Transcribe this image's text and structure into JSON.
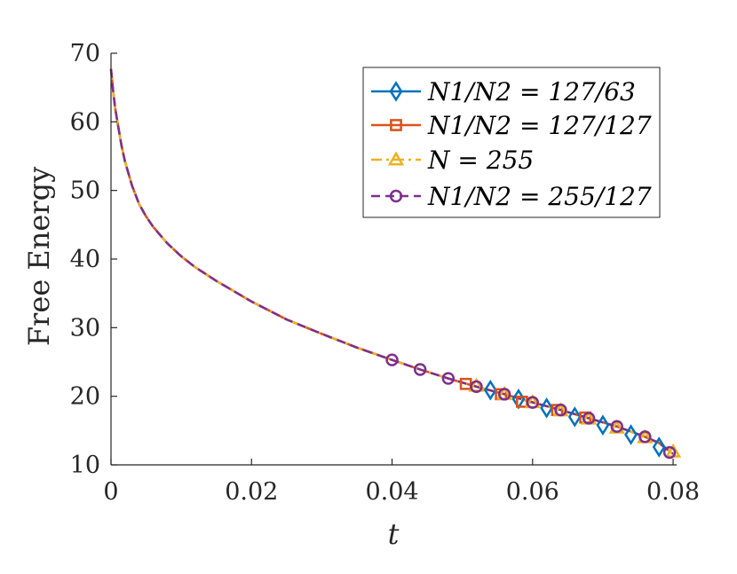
{
  "chart_data": {
    "type": "line",
    "title": "",
    "xlabel": "t",
    "ylabel": "Free Energy",
    "xlim": [
      0,
      0.0805
    ],
    "ylim": [
      10,
      70
    ],
    "xticks": [
      0,
      0.02,
      0.04,
      0.06,
      0.08
    ],
    "xtick_labels": [
      "0",
      "0.02",
      "0.04",
      "0.06",
      "0.08"
    ],
    "yticks": [
      10,
      20,
      30,
      40,
      50,
      60,
      70
    ],
    "ytick_labels": [
      "10",
      "20",
      "30",
      "40",
      "50",
      "60",
      "70"
    ],
    "grid": false,
    "legend_position": "top-right",
    "series": [
      {
        "name": "N_1/N_2 = 127/63",
        "legend_label": "N1/N2 = 127/63",
        "color": "#0072BD",
        "line_style": "solid",
        "marker": "diamond",
        "marker_x": [
          0.054,
          0.058,
          0.062,
          0.066,
          0.07,
          0.074,
          0.078
        ],
        "marker_y": [
          20.9,
          19.6,
          18.3,
          17.0,
          15.8,
          14.4,
          12.6
        ]
      },
      {
        "name": "N_1/N_2 = 127/127",
        "legend_label": "N1/N2 = 127/127",
        "color": "#D95319",
        "line_style": "solid",
        "marker": "square",
        "marker_x": [
          0.0505,
          0.0555,
          0.0585,
          0.0635,
          0.0675
        ],
        "marker_y": [
          21.8,
          20.3,
          19.2,
          18.0,
          16.9
        ]
      },
      {
        "name": "N = 255",
        "legend_label": "N = 255",
        "color": "#EDB120",
        "line_style": "dashdot",
        "marker": "triangle",
        "marker_x": [
          0.052,
          0.056,
          0.06,
          0.064,
          0.068,
          0.072,
          0.076,
          0.08
        ],
        "marker_y": [
          21.5,
          20.3,
          19.1,
          17.9,
          16.7,
          15.4,
          14.0,
          11.9
        ]
      },
      {
        "name": "N_1/N_2 = 255/127",
        "legend_label": "N1/N2 = 255/127",
        "color": "#7E2F8E",
        "line_style": "dashed",
        "marker": "circle",
        "marker_x": [
          0.04,
          0.044,
          0.048,
          0.052,
          0.056,
          0.06,
          0.064,
          0.068,
          0.072,
          0.076,
          0.0795
        ],
        "marker_y": [
          25.3,
          23.9,
          22.6,
          21.4,
          20.3,
          19.1,
          18.0,
          16.8,
          15.6,
          14.1,
          11.8
        ]
      }
    ],
    "curve": {
      "x": [
        0,
        0.0003,
        0.0006,
        0.001,
        0.0015,
        0.002,
        0.003,
        0.004,
        0.005,
        0.006,
        0.008,
        0.01,
        0.012,
        0.015,
        0.02,
        0.025,
        0.03,
        0.035,
        0.04,
        0.044,
        0.048,
        0.052,
        0.056,
        0.06,
        0.064,
        0.068,
        0.072,
        0.076,
        0.078,
        0.08
      ],
      "y": [
        67.7,
        64.5,
        62.0,
        59.5,
        56.5,
        54.2,
        50.7,
        48.0,
        46.2,
        44.7,
        42.3,
        40.4,
        38.8,
        36.8,
        33.8,
        31.2,
        29.1,
        27.1,
        25.3,
        23.9,
        22.6,
        21.4,
        20.3,
        19.1,
        18.0,
        16.8,
        15.6,
        14.1,
        13.2,
        11.6
      ]
    }
  }
}
